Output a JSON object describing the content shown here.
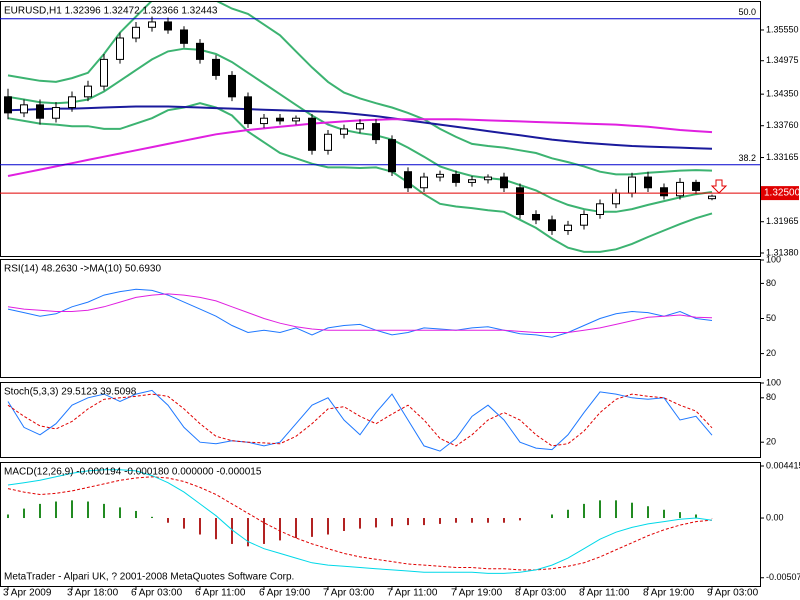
{
  "chart_data": [
    {
      "type": "candlestick",
      "title": "EURUSD,H1  1.32396 1.32472 1.32366 1.32443",
      "categories": [
        "3 Apr 2009",
        null,
        null,
        null,
        "3 Apr 18:00",
        null,
        null,
        null,
        "6 Apr 03:00",
        null,
        null,
        null,
        "6 Apr 11:00",
        null,
        null,
        null,
        "6 Apr 19:00",
        null,
        null,
        null,
        "7 Apr 03:00",
        null,
        null,
        null,
        "7 Apr 11:00",
        null,
        null,
        null,
        "7 Apr 19:00",
        null,
        null,
        null,
        "8 Apr 03:00",
        null,
        null,
        null,
        "8 Apr 11:00",
        null,
        null,
        null,
        "8 Apr 19:00",
        null,
        null,
        null,
        "9 Apr 03:00"
      ],
      "open": [
        1.343,
        1.34,
        1.3415,
        1.339,
        1.341,
        1.343,
        1.345,
        1.35,
        1.354,
        1.356,
        1.357,
        1.3555,
        1.353,
        1.35,
        1.347,
        1.343,
        1.338,
        1.339,
        1.3385,
        1.339,
        1.333,
        1.336,
        1.337,
        1.338,
        1.335,
        1.329,
        1.326,
        1.328,
        1.3285,
        1.327,
        1.3275,
        1.328,
        1.326,
        1.321,
        1.32,
        1.318,
        1.319,
        1.321,
        1.323,
        1.325,
        1.328,
        1.326,
        1.3245,
        1.327,
        1.32396
      ],
      "high": [
        1.3445,
        1.3425,
        1.3425,
        1.342,
        1.344,
        1.346,
        1.351,
        1.355,
        1.357,
        1.358,
        1.3578,
        1.3562,
        1.3538,
        1.3508,
        1.3478,
        1.3438,
        1.3398,
        1.3398,
        1.3395,
        1.3398,
        1.3368,
        1.3378,
        1.3388,
        1.3388,
        1.3358,
        1.3298,
        1.3288,
        1.3292,
        1.3292,
        1.3282,
        1.3285,
        1.3288,
        1.3268,
        1.3218,
        1.3208,
        1.3198,
        1.3218,
        1.3238,
        1.3258,
        1.3288,
        1.329,
        1.3268,
        1.3278,
        1.3275,
        1.32472
      ],
      "low": [
        1.3388,
        1.3392,
        1.3378,
        1.3382,
        1.3402,
        1.3422,
        1.3442,
        1.3492,
        1.3532,
        1.3552,
        1.3548,
        1.3522,
        1.3492,
        1.3462,
        1.3422,
        1.3372,
        1.3372,
        1.3378,
        1.3378,
        1.3322,
        1.3322,
        1.3352,
        1.3362,
        1.3342,
        1.3282,
        1.3252,
        1.3252,
        1.3272,
        1.3262,
        1.3262,
        1.3268,
        1.3252,
        1.3202,
        1.3192,
        1.3172,
        1.3172,
        1.3182,
        1.3202,
        1.3222,
        1.3242,
        1.3252,
        1.3238,
        1.3238,
        1.3248,
        1.32366
      ],
      "close": [
        1.34,
        1.3415,
        1.339,
        1.341,
        1.343,
        1.345,
        1.35,
        1.354,
        1.356,
        1.357,
        1.3555,
        1.353,
        1.35,
        1.347,
        1.343,
        1.338,
        1.339,
        1.3385,
        1.339,
        1.333,
        1.336,
        1.337,
        1.338,
        1.335,
        1.329,
        1.326,
        1.328,
        1.3285,
        1.327,
        1.3275,
        1.328,
        1.326,
        1.321,
        1.32,
        1.318,
        1.319,
        1.321,
        1.323,
        1.325,
        1.328,
        1.326,
        1.3245,
        1.327,
        1.3255,
        1.32443
      ],
      "up_color": "#ffffff",
      "down_color": "#000000",
      "series": [
        {
          "color": "#3cb371",
          "values": [
            1.347,
            1.3465,
            1.346,
            1.3458,
            1.3465,
            1.3475,
            1.351,
            1.355,
            1.358,
            1.361,
            1.3625,
            1.363,
            1.3618,
            1.361,
            1.3595,
            1.3585,
            1.3565,
            1.3545,
            1.3515,
            1.3485,
            1.3458,
            1.3438,
            1.3427,
            1.3418,
            1.341,
            1.34,
            1.3388,
            1.337,
            1.3355,
            1.3342,
            1.3338,
            1.3335,
            1.333,
            1.3325,
            1.3315,
            1.3308,
            1.33,
            1.329,
            1.3285,
            1.3285,
            1.3288,
            1.329,
            1.3292,
            1.3293,
            1.3292
          ]
        },
        {
          "color": "#3cb371",
          "values": [
            1.343,
            1.3425,
            1.342,
            1.3418,
            1.342,
            1.3425,
            1.344,
            1.346,
            1.348,
            1.35,
            1.3515,
            1.352,
            1.3518,
            1.351,
            1.3495,
            1.3475,
            1.3455,
            1.3435,
            1.3415,
            1.3395,
            1.3378,
            1.3368,
            1.3362,
            1.3358,
            1.335,
            1.3335,
            1.3318,
            1.33,
            1.329,
            1.3282,
            1.3278,
            1.3275,
            1.3265,
            1.3255,
            1.324,
            1.3228,
            1.322,
            1.3215,
            1.3215,
            1.322,
            1.3228,
            1.3235,
            1.3242,
            1.3248,
            1.3252
          ]
        },
        {
          "color": "#3cb371",
          "values": [
            1.339,
            1.3385,
            1.338,
            1.3378,
            1.3375,
            1.3375,
            1.337,
            1.337,
            1.338,
            1.339,
            1.3405,
            1.341,
            1.3418,
            1.341,
            1.3395,
            1.3365,
            1.3345,
            1.3325,
            1.3315,
            1.3305,
            1.3298,
            1.3298,
            1.3297,
            1.3298,
            1.329,
            1.327,
            1.3248,
            1.323,
            1.3225,
            1.3222,
            1.3218,
            1.3215,
            1.32,
            1.3185,
            1.3165,
            1.3148,
            1.314,
            1.314,
            1.3145,
            1.3155,
            1.3168,
            1.318,
            1.3192,
            1.3203,
            1.3212
          ]
        },
        {
          "color": "#1a1a9c",
          "values": [
            1.3405,
            1.3406,
            1.3407,
            1.3408,
            1.3408,
            1.3409,
            1.341,
            1.3411,
            1.3412,
            1.3412,
            1.3412,
            1.3411,
            1.341,
            1.3409,
            1.3408,
            1.3407,
            1.3406,
            1.3405,
            1.3404,
            1.3403,
            1.3402,
            1.34,
            1.3397,
            1.3394,
            1.339,
            1.3386,
            1.3382,
            1.3378,
            1.3374,
            1.337,
            1.3366,
            1.3362,
            1.3358,
            1.3354,
            1.335,
            1.3347,
            1.3344,
            1.3342,
            1.334,
            1.3338,
            1.3337,
            1.3336,
            1.3335,
            1.3334,
            1.3333
          ]
        },
        {
          "color": "#e020e0",
          "values": [
            1.3282,
            1.3288,
            1.3294,
            1.33,
            1.3306,
            1.3312,
            1.3318,
            1.3324,
            1.333,
            1.3336,
            1.3342,
            1.3348,
            1.3354,
            1.336,
            1.3364,
            1.3368,
            1.3371,
            1.3374,
            1.3377,
            1.338,
            1.3382,
            1.3384,
            1.3386,
            1.3387,
            1.3388,
            1.3388,
            1.3388,
            1.3388,
            1.3388,
            1.3387,
            1.3386,
            1.3385,
            1.3384,
            1.3383,
            1.3382,
            1.3381,
            1.338,
            1.3379,
            1.3378,
            1.3376,
            1.3374,
            1.3371,
            1.3368,
            1.3366,
            1.3364
          ]
        }
      ],
      "levels": [
        {
          "price": 1.3576,
          "label": "50.0",
          "color": "#0000cd"
        },
        {
          "price": 1.3303,
          "label": "38.2",
          "color": "#0000cd"
        }
      ],
      "bid": {
        "price": 1.325,
        "label": "1.32500",
        "color": "#e00000"
      },
      "ylim": [
        1.31324,
        1.36073
      ],
      "yticks": [
        {
          "value": 1.3555,
          "label": "1.35550"
        },
        1.34975,
        {
          "value": 1.3435,
          "label": "1.34350"
        },
        {
          "value": 1.3376,
          "label": "1.33760"
        },
        1.33165,
        1.31965,
        {
          "value": 1.3138,
          "label": "1.31380"
        }
      ]
    },
    {
      "type": "line",
      "title": "RSI(14) 48.2630  ->MA(10) 50.6930",
      "series": [
        {
          "color": "#1e78ff",
          "values": [
            58,
            55,
            52,
            54,
            60,
            64,
            70,
            73,
            75,
            74,
            70,
            64,
            58,
            52,
            44,
            38,
            40,
            38,
            42,
            36,
            42,
            44,
            45,
            40,
            36,
            38,
            42,
            41,
            40,
            42,
            43,
            40,
            37,
            36,
            34,
            38,
            44,
            50,
            54,
            56,
            55,
            52,
            56,
            50,
            48.263
          ]
        },
        {
          "color": "#e020e0",
          "values": [
            60,
            58,
            57,
            56,
            56,
            57,
            60,
            64,
            68,
            70,
            71,
            70,
            68,
            65,
            60,
            55,
            50,
            46,
            43,
            41,
            40,
            40,
            40,
            40,
            40,
            40,
            40,
            40,
            40,
            40,
            40,
            40,
            39,
            38,
            38,
            38,
            40,
            42,
            45,
            48,
            51,
            52,
            53,
            51,
            50.693
          ]
        }
      ],
      "ylim": [
        0,
        100
      ],
      "yticks": [
        100,
        80,
        50,
        20
      ]
    },
    {
      "type": "line",
      "title": "Stoch(5,3,3) 29.5123 39.5098",
      "series": [
        {
          "color": "#1e78ff",
          "values": [
            75,
            40,
            30,
            45,
            70,
            80,
            85,
            75,
            85,
            90,
            70,
            40,
            20,
            18,
            22,
            20,
            15,
            20,
            45,
            70,
            80,
            50,
            30,
            60,
            85,
            50,
            15,
            8,
            25,
            55,
            70,
            50,
            20,
            12,
            10,
            30,
            60,
            88,
            85,
            80,
            78,
            80,
            50,
            55,
            29.5123
          ]
        },
        {
          "color": "#e00000",
          "dash": true,
          "values": [
            70,
            55,
            42,
            38,
            48,
            65,
            78,
            80,
            82,
            85,
            82,
            65,
            45,
            28,
            22,
            20,
            19,
            18,
            28,
            45,
            65,
            68,
            55,
            45,
            58,
            70,
            50,
            25,
            15,
            30,
            50,
            60,
            50,
            30,
            15,
            18,
            35,
            60,
            78,
            85,
            82,
            80,
            70,
            62,
            39.5098
          ]
        }
      ],
      "ylim": [
        0,
        100
      ],
      "yticks": [
        100,
        80,
        20
      ]
    },
    {
      "type": "macd",
      "title": "MACD(12,26,9) -0.000194 -0.000180 0.000000 -0.000015",
      "footer": "MetaTrader - Alpari UK, ? 2001-2008 MetaQuotes Software Corp.",
      "series": [
        {
          "kind": "bar",
          "color": "#228b22",
          "negative_color": "#b22222",
          "values": [
            0.0003,
            0.0008,
            0.0012,
            0.0014,
            0.0015,
            0.0014,
            0.0012,
            0.0009,
            0.0006,
            0.0001,
            -0.0004,
            -0.0009,
            -0.0014,
            -0.0018,
            -0.0022,
            -0.0024,
            -0.0022,
            -0.0019,
            -0.0017,
            -0.0016,
            -0.0014,
            -0.0011,
            -0.0009,
            -0.0008,
            -0.0007,
            -0.0006,
            -0.0006,
            -0.0005,
            -0.0004,
            -0.0004,
            -0.0004,
            -0.0004,
            -0.0002,
            0.0,
            0.0003,
            0.0007,
            0.0012,
            0.0015,
            0.0015,
            0.0013,
            0.001,
            0.0007,
            0.0005,
            0.0003,
            -1.5e-05
          ]
        },
        {
          "color": "#e00000",
          "dash": true,
          "values": [
            0.0025,
            0.0022,
            0.002,
            0.0021,
            0.0023,
            0.0026,
            0.0029,
            0.0032,
            0.0034,
            0.0035,
            0.0034,
            0.0031,
            0.0026,
            0.002,
            0.0012,
            0.0004,
            -0.0004,
            -0.0011,
            -0.0017,
            -0.0022,
            -0.0026,
            -0.003,
            -0.0033,
            -0.0035,
            -0.0037,
            -0.0039,
            -0.004,
            -0.0041,
            -0.0042,
            -0.0042,
            -0.0043,
            -0.0043,
            -0.0044,
            -0.0044,
            -0.0043,
            -0.0041,
            -0.0038,
            -0.0033,
            -0.0027,
            -0.0021,
            -0.0015,
            -0.001,
            -0.0006,
            -0.0003,
            -0.00018
          ]
        },
        {
          "color": "#00d8e8",
          "values": [
            0.0028,
            0.003,
            0.0032,
            0.0035,
            0.0038,
            0.004,
            0.0041,
            0.0041,
            0.004,
            0.0036,
            0.003,
            0.0022,
            0.0012,
            0.0002,
            -0.001,
            -0.002,
            -0.0026,
            -0.003,
            -0.0034,
            -0.0038,
            -0.004,
            -0.0041,
            -0.0042,
            -0.0043,
            -0.0044,
            -0.0045,
            -0.0046,
            -0.0046,
            -0.0046,
            -0.0046,
            -0.0047,
            -0.0047,
            -0.0046,
            -0.0044,
            -0.004,
            -0.0034,
            -0.0026,
            -0.0018,
            -0.0012,
            -0.0008,
            -0.0005,
            -0.0003,
            -0.0001,
            0.0,
            -0.000194
          ]
        }
      ],
      "ylim": [
        -0.00577,
        0.00467
      ],
      "yticks": [
        0.004415,
        {
          "value": 0,
          "label": "0.00"
        },
        -0.00507
      ]
    }
  ]
}
